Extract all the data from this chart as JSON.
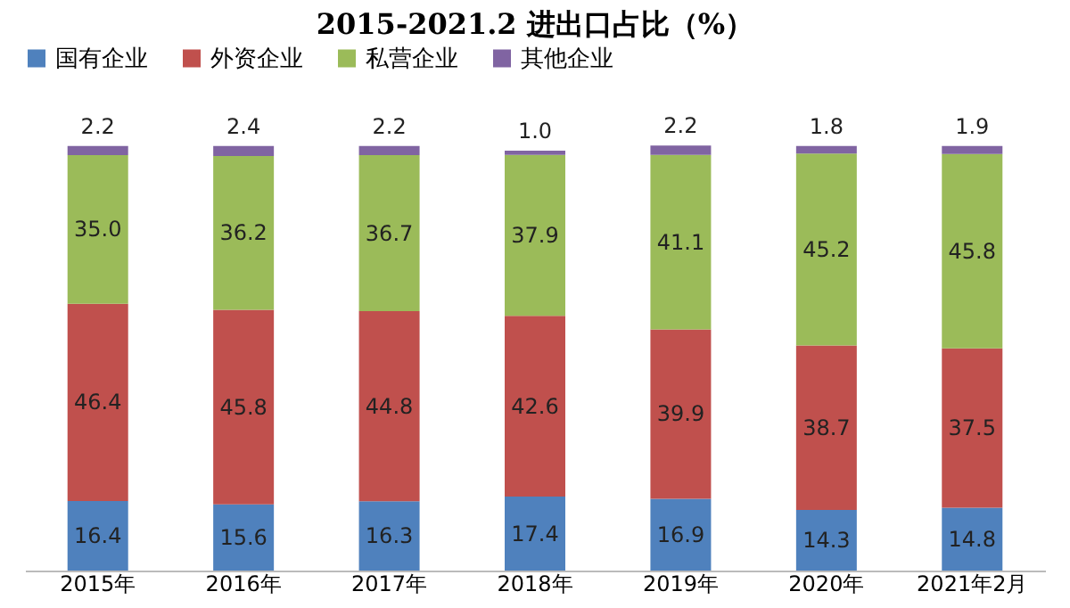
{
  "chart_data": {
    "type": "bar",
    "title": "2015-2021.2 进出口占比（%）",
    "stacked": true,
    "legend": "top",
    "tick_labels": "x",
    "categories": [
      "2015年",
      "2016年",
      "2017年",
      "2018年",
      "2019年",
      "2020年",
      "2021年2月"
    ],
    "series": [
      {
        "name": "国有企业",
        "color": "#4f81bd",
        "values": [
          16.4,
          15.6,
          16.3,
          17.4,
          16.9,
          14.3,
          14.8
        ],
        "value_labels": [
          "16.4",
          "15.6",
          "16.3",
          "17.4",
          "16.9",
          "14.3",
          "14.8"
        ]
      },
      {
        "name": "外资企业",
        "color": "#c0504d",
        "values": [
          46.4,
          45.8,
          44.8,
          42.6,
          39.9,
          38.7,
          37.5
        ],
        "value_labels": [
          "46.4",
          "45.8",
          "44.8",
          "42.6",
          "39.9",
          "38.7",
          "37.5"
        ]
      },
      {
        "name": "私营企业",
        "color": "#9bbb59",
        "values": [
          35.0,
          36.2,
          36.7,
          37.9,
          41.1,
          45.2,
          45.8
        ],
        "value_labels": [
          "35.0",
          "36.2",
          "36.7",
          "37.9",
          "41.1",
          "45.2",
          "45.8"
        ]
      },
      {
        "name": "其他企业",
        "color": "#8064a2",
        "values": [
          2.2,
          2.4,
          2.2,
          1.0,
          2.2,
          1.8,
          1.9
        ],
        "value_labels": [
          "2.2",
          "2.4",
          "2.2",
          "1.0",
          "2.2",
          "1.8",
          "1.9"
        ]
      }
    ]
  }
}
